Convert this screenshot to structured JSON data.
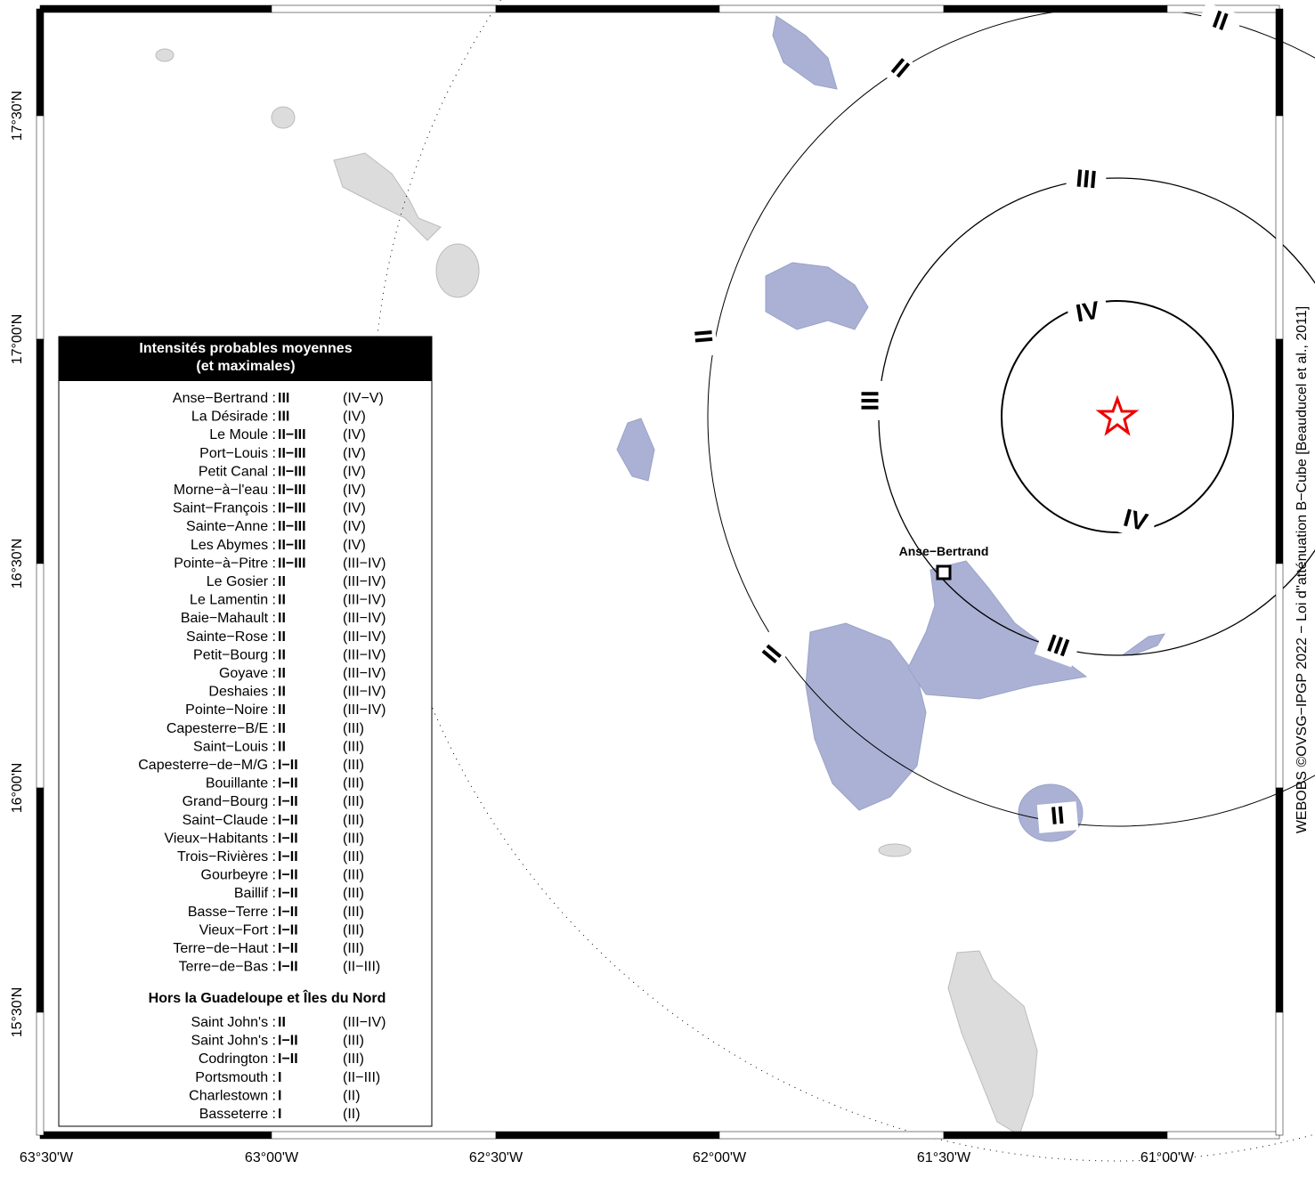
{
  "map": {
    "lon_ticks": [
      "63°30'W",
      "63°00'W",
      "62°30'W",
      "62°00'W",
      "61°30'W",
      "61°00'W"
    ],
    "lat_ticks": [
      "17°30'N",
      "17°00'N",
      "16°30'N",
      "16°00'N",
      "15°30'N"
    ],
    "rings": [
      {
        "label": "IV"
      },
      {
        "label": "III"
      },
      {
        "label": "II"
      }
    ],
    "place_label": "Anse−Bertrand",
    "credit": "WEBOBS ©OVSG−IPGP 2022 − Loi d''atténuation B−Cube [Beauducel et al., 2011]",
    "legend": {
      "title": "Intensités probables moyennes",
      "subtitle": "(et maximales)",
      "rows": [
        [
          "Anse−Bertrand :",
          "III",
          "(IV−V)"
        ],
        [
          "La Désirade :",
          "III",
          "(IV)"
        ],
        [
          "Le Moule :",
          "II−III",
          "(IV)"
        ],
        [
          "Port−Louis :",
          "II−III",
          "(IV)"
        ],
        [
          "Petit Canal :",
          "II−III",
          "(IV)"
        ],
        [
          "Morne−à−l'eau :",
          "II−III",
          "(IV)"
        ],
        [
          "Saint−François :",
          "II−III",
          "(IV)"
        ],
        [
          "Sainte−Anne :",
          "II−III",
          "(IV)"
        ],
        [
          "Les Abymes :",
          "II−III",
          "(IV)"
        ],
        [
          "Pointe−à−Pitre :",
          "II−III",
          "(III−IV)"
        ],
        [
          "Le Gosier :",
          "II",
          "(III−IV)"
        ],
        [
          "Le Lamentin :",
          "II",
          "(III−IV)"
        ],
        [
          "Baie−Mahault :",
          "II",
          "(III−IV)"
        ],
        [
          "Sainte−Rose :",
          "II",
          "(III−IV)"
        ],
        [
          "Petit−Bourg :",
          "II",
          "(III−IV)"
        ],
        [
          "Goyave :",
          "II",
          "(III−IV)"
        ],
        [
          "Deshaies :",
          "II",
          "(III−IV)"
        ],
        [
          "Pointe−Noire :",
          "II",
          "(III−IV)"
        ],
        [
          "Capesterre−B/E :",
          "II",
          "(III)"
        ],
        [
          "Saint−Louis :",
          "II",
          "(III)"
        ],
        [
          "Capesterre−de−M/G :",
          "I−II",
          "(III)"
        ],
        [
          "Bouillante :",
          "I−II",
          "(III)"
        ],
        [
          "Grand−Bourg :",
          "I−II",
          "(III)"
        ],
        [
          "Saint−Claude :",
          "I−II",
          "(III)"
        ],
        [
          "Vieux−Habitants :",
          "I−II",
          "(III)"
        ],
        [
          "Trois−Rivières :",
          "I−II",
          "(III)"
        ],
        [
          "Gourbeyre :",
          "I−II",
          "(III)"
        ],
        [
          "Baillif :",
          "I−II",
          "(III)"
        ],
        [
          "Basse−Terre :",
          "I−II",
          "(III)"
        ],
        [
          "Vieux−Fort :",
          "I−II",
          "(III)"
        ],
        [
          "Terre−de−Haut :",
          "I−II",
          "(III)"
        ],
        [
          "Terre−de−Bas :",
          "I−II",
          "(II−III)"
        ]
      ],
      "section": "Hors la Guadeloupe et Îles du Nord",
      "rows2": [
        [
          "Saint John's :",
          "II",
          "(III−IV)"
        ],
        [
          "Saint John's :",
          "I−II",
          "(III)"
        ],
        [
          "Codrington :",
          "I−II",
          "(III)"
        ],
        [
          "Portsmouth :",
          "I",
          "(II−III)"
        ],
        [
          "Charlestown :",
          "I",
          "(II)"
        ],
        [
          "Basseterre :",
          "I",
          "(II)"
        ]
      ]
    }
  }
}
